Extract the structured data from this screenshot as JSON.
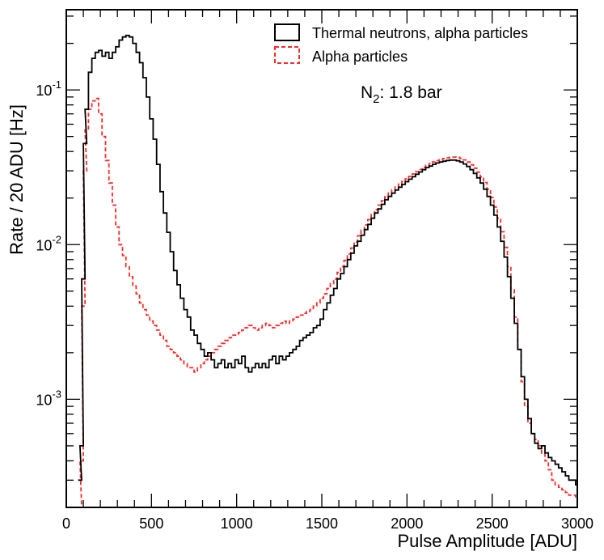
{
  "chart_data": {
    "type": "line",
    "title": "",
    "xlabel": "Pulse Amplitude [ADU]",
    "ylabel": "Rate / 20 ADU [Hz]",
    "xlim": [
      0,
      3000
    ],
    "ylim": [
      0.0002,
      0.33
    ],
    "yscale": "log",
    "grid": false,
    "legend_position": "top-right",
    "x_tick_labels": [
      "0",
      "500",
      "1000",
      "1500",
      "2000",
      "2500",
      "3000"
    ],
    "x_tick_values": [
      0,
      500,
      1000,
      1500,
      2000,
      2500,
      3000
    ],
    "y_tick_values": [
      0.001,
      0.01,
      0.1
    ],
    "y_tick_labels": [
      {
        "base": "10",
        "exp": "-3"
      },
      {
        "base": "10",
        "exp": "-2"
      },
      {
        "base": "10",
        "exp": "-1"
      }
    ],
    "annotation": {
      "main": "N",
      "sub": "2",
      "rest": ": 1.8 bar"
    },
    "bin_width": 20,
    "series": [
      {
        "name": "Thermal neutrons, alpha particles",
        "color": "#000000",
        "style": "solid",
        "points": [
          [
            80,
            0.0003
          ],
          [
            90,
            0.0005
          ],
          [
            100,
            0.006
          ],
          [
            110,
            0.045
          ],
          [
            120,
            0.075
          ],
          [
            140,
            0.13
          ],
          [
            160,
            0.16
          ],
          [
            180,
            0.175
          ],
          [
            200,
            0.18
          ],
          [
            220,
            0.165
          ],
          [
            240,
            0.175
          ],
          [
            260,
            0.16
          ],
          [
            280,
            0.175
          ],
          [
            300,
            0.19
          ],
          [
            320,
            0.21
          ],
          [
            340,
            0.22
          ],
          [
            360,
            0.225
          ],
          [
            380,
            0.22
          ],
          [
            400,
            0.2
          ],
          [
            420,
            0.175
          ],
          [
            440,
            0.15
          ],
          [
            460,
            0.12
          ],
          [
            480,
            0.09
          ],
          [
            500,
            0.065
          ],
          [
            520,
            0.048
          ],
          [
            540,
            0.033
          ],
          [
            560,
            0.022
          ],
          [
            580,
            0.016
          ],
          [
            600,
            0.012
          ],
          [
            620,
            0.009
          ],
          [
            640,
            0.0068
          ],
          [
            660,
            0.0055
          ],
          [
            680,
            0.0045
          ],
          [
            700,
            0.0038
          ],
          [
            720,
            0.0034
          ],
          [
            740,
            0.0028
          ],
          [
            760,
            0.0026
          ],
          [
            780,
            0.0023
          ],
          [
            800,
            0.0021
          ],
          [
            820,
            0.0019
          ],
          [
            840,
            0.002
          ],
          [
            860,
            0.0018
          ],
          [
            880,
            0.0016
          ],
          [
            900,
            0.0017
          ],
          [
            920,
            0.0018
          ],
          [
            940,
            0.0016
          ],
          [
            960,
            0.0017
          ],
          [
            980,
            0.0016
          ],
          [
            1000,
            0.0018
          ],
          [
            1020,
            0.0017
          ],
          [
            1040,
            0.0019
          ],
          [
            1060,
            0.0016
          ],
          [
            1080,
            0.0015
          ],
          [
            1100,
            0.0016
          ],
          [
            1120,
            0.0017
          ],
          [
            1140,
            0.0016
          ],
          [
            1160,
            0.0017
          ],
          [
            1180,
            0.0016
          ],
          [
            1200,
            0.0018
          ],
          [
            1220,
            0.0019
          ],
          [
            1240,
            0.0017
          ],
          [
            1260,
            0.0019
          ],
          [
            1280,
            0.0018
          ],
          [
            1300,
            0.0019
          ],
          [
            1320,
            0.002
          ],
          [
            1340,
            0.0021
          ],
          [
            1360,
            0.0022
          ],
          [
            1380,
            0.0024
          ],
          [
            1400,
            0.0025
          ],
          [
            1420,
            0.0026
          ],
          [
            1440,
            0.0027
          ],
          [
            1460,
            0.0029
          ],
          [
            1480,
            0.003
          ],
          [
            1500,
            0.0033
          ],
          [
            1520,
            0.0038
          ],
          [
            1540,
            0.0042
          ],
          [
            1560,
            0.0047
          ],
          [
            1580,
            0.0052
          ],
          [
            1600,
            0.006
          ],
          [
            1620,
            0.0065
          ],
          [
            1640,
            0.0072
          ],
          [
            1660,
            0.008
          ],
          [
            1680,
            0.0088
          ],
          [
            1700,
            0.0098
          ],
          [
            1720,
            0.0105
          ],
          [
            1740,
            0.0115
          ],
          [
            1760,
            0.0125
          ],
          [
            1780,
            0.0135
          ],
          [
            1800,
            0.0148
          ],
          [
            1820,
            0.016
          ],
          [
            1840,
            0.017
          ],
          [
            1860,
            0.0182
          ],
          [
            1880,
            0.0195
          ],
          [
            1900,
            0.0205
          ],
          [
            1920,
            0.0215
          ],
          [
            1940,
            0.0225
          ],
          [
            1960,
            0.0235
          ],
          [
            1980,
            0.0245
          ],
          [
            2000,
            0.0255
          ],
          [
            2020,
            0.0265
          ],
          [
            2040,
            0.0275
          ],
          [
            2060,
            0.0285
          ],
          [
            2080,
            0.0295
          ],
          [
            2100,
            0.0305
          ],
          [
            2120,
            0.0315
          ],
          [
            2140,
            0.0322
          ],
          [
            2160,
            0.033
          ],
          [
            2180,
            0.0337
          ],
          [
            2200,
            0.0342
          ],
          [
            2220,
            0.0346
          ],
          [
            2240,
            0.035
          ],
          [
            2260,
            0.0352
          ],
          [
            2280,
            0.0352
          ],
          [
            2300,
            0.0348
          ],
          [
            2320,
            0.0342
          ],
          [
            2340,
            0.0332
          ],
          [
            2360,
            0.032
          ],
          [
            2380,
            0.0305
          ],
          [
            2400,
            0.0288
          ],
          [
            2420,
            0.027
          ],
          [
            2440,
            0.025
          ],
          [
            2460,
            0.0228
          ],
          [
            2480,
            0.0205
          ],
          [
            2500,
            0.018
          ],
          [
            2520,
            0.0155
          ],
          [
            2540,
            0.013
          ],
          [
            2560,
            0.0105
          ],
          [
            2580,
            0.0083
          ],
          [
            2600,
            0.0062
          ],
          [
            2620,
            0.0045
          ],
          [
            2640,
            0.0031
          ],
          [
            2660,
            0.0021
          ],
          [
            2680,
            0.0014
          ],
          [
            2700,
            0.001
          ],
          [
            2720,
            0.00075
          ],
          [
            2740,
            0.0006
          ],
          [
            2760,
            0.00052
          ],
          [
            2780,
            0.00048
          ],
          [
            2800,
            0.0005
          ],
          [
            2820,
            0.00045
          ],
          [
            2840,
            0.00042
          ],
          [
            2860,
            0.0004
          ],
          [
            2880,
            0.00038
          ],
          [
            2900,
            0.00036
          ],
          [
            2920,
            0.00034
          ],
          [
            2940,
            0.00032
          ],
          [
            2960,
            0.0003
          ],
          [
            2980,
            0.0003
          ],
          [
            3000,
            0.00028
          ]
        ]
      },
      {
        "name": "Alpha particles",
        "color": "#ff2a2a",
        "style": "dashed",
        "points": [
          [
            80,
            0.0002
          ],
          [
            90,
            0.0004
          ],
          [
            100,
            0.004
          ],
          [
            110,
            0.03
          ],
          [
            120,
            0.055
          ],
          [
            140,
            0.075
          ],
          [
            160,
            0.085
          ],
          [
            180,
            0.088
          ],
          [
            200,
            0.07
          ],
          [
            220,
            0.05
          ],
          [
            240,
            0.035
          ],
          [
            260,
            0.025
          ],
          [
            280,
            0.018
          ],
          [
            300,
            0.013
          ],
          [
            320,
            0.01
          ],
          [
            340,
            0.0085
          ],
          [
            360,
            0.0072
          ],
          [
            380,
            0.0062
          ],
          [
            400,
            0.0054
          ],
          [
            420,
            0.0048
          ],
          [
            440,
            0.0042
          ],
          [
            460,
            0.0038
          ],
          [
            480,
            0.0035
          ],
          [
            500,
            0.0032
          ],
          [
            520,
            0.003
          ],
          [
            540,
            0.0028
          ],
          [
            560,
            0.0026
          ],
          [
            580,
            0.0024
          ],
          [
            600,
            0.0022
          ],
          [
            620,
            0.0021
          ],
          [
            640,
            0.002
          ],
          [
            660,
            0.0019
          ],
          [
            680,
            0.0018
          ],
          [
            700,
            0.0017
          ],
          [
            720,
            0.0016
          ],
          [
            740,
            0.0016
          ],
          [
            760,
            0.0015
          ],
          [
            780,
            0.0016
          ],
          [
            800,
            0.0017
          ],
          [
            820,
            0.0018
          ],
          [
            840,
            0.0019
          ],
          [
            860,
            0.002
          ],
          [
            880,
            0.0021
          ],
          [
            900,
            0.0022
          ],
          [
            920,
            0.0023
          ],
          [
            940,
            0.0024
          ],
          [
            960,
            0.0025
          ],
          [
            980,
            0.0026
          ],
          [
            1000,
            0.0026
          ],
          [
            1020,
            0.0027
          ],
          [
            1040,
            0.0028
          ],
          [
            1060,
            0.0029
          ],
          [
            1080,
            0.003
          ],
          [
            1100,
            0.0029
          ],
          [
            1120,
            0.0028
          ],
          [
            1140,
            0.0029
          ],
          [
            1160,
            0.003
          ],
          [
            1180,
            0.0031
          ],
          [
            1200,
            0.003
          ],
          [
            1220,
            0.0029
          ],
          [
            1240,
            0.003
          ],
          [
            1260,
            0.0031
          ],
          [
            1280,
            0.0032
          ],
          [
            1300,
            0.0031
          ],
          [
            1320,
            0.0032
          ],
          [
            1340,
            0.0033
          ],
          [
            1360,
            0.0034
          ],
          [
            1380,
            0.0035
          ],
          [
            1400,
            0.0036
          ],
          [
            1420,
            0.0037
          ],
          [
            1440,
            0.0038
          ],
          [
            1460,
            0.004
          ],
          [
            1480,
            0.0042
          ],
          [
            1500,
            0.0045
          ],
          [
            1520,
            0.0048
          ],
          [
            1540,
            0.0052
          ],
          [
            1560,
            0.0056
          ],
          [
            1580,
            0.006
          ],
          [
            1600,
            0.0066
          ],
          [
            1620,
            0.0072
          ],
          [
            1640,
            0.0079
          ],
          [
            1660,
            0.0087
          ],
          [
            1680,
            0.0095
          ],
          [
            1700,
            0.0104
          ],
          [
            1720,
            0.0114
          ],
          [
            1740,
            0.0124
          ],
          [
            1760,
            0.0134
          ],
          [
            1780,
            0.0145
          ],
          [
            1800,
            0.0157
          ],
          [
            1820,
            0.0168
          ],
          [
            1840,
            0.018
          ],
          [
            1860,
            0.0192
          ],
          [
            1880,
            0.0204
          ],
          [
            1900,
            0.0215
          ],
          [
            1920,
            0.0226
          ],
          [
            1940,
            0.0236
          ],
          [
            1960,
            0.0246
          ],
          [
            1980,
            0.0256
          ],
          [
            2000,
            0.0266
          ],
          [
            2020,
            0.0276
          ],
          [
            2040,
            0.0286
          ],
          [
            2060,
            0.0296
          ],
          [
            2080,
            0.0306
          ],
          [
            2100,
            0.0316
          ],
          [
            2120,
            0.0326
          ],
          [
            2140,
            0.0334
          ],
          [
            2160,
            0.0342
          ],
          [
            2180,
            0.0349
          ],
          [
            2200,
            0.0355
          ],
          [
            2220,
            0.036
          ],
          [
            2240,
            0.0364
          ],
          [
            2260,
            0.0367
          ],
          [
            2280,
            0.0368
          ],
          [
            2300,
            0.0366
          ],
          [
            2320,
            0.0361
          ],
          [
            2340,
            0.0353
          ],
          [
            2360,
            0.0342
          ],
          [
            2380,
            0.0328
          ],
          [
            2400,
            0.0312
          ],
          [
            2420,
            0.0294
          ],
          [
            2440,
            0.0274
          ],
          [
            2460,
            0.0252
          ],
          [
            2480,
            0.0228
          ],
          [
            2500,
            0.0202
          ],
          [
            2520,
            0.0175
          ],
          [
            2540,
            0.0148
          ],
          [
            2560,
            0.0121
          ],
          [
            2580,
            0.0096
          ],
          [
            2600,
            0.0072
          ],
          [
            2620,
            0.0051
          ],
          [
            2640,
            0.0034
          ],
          [
            2660,
            0.0021
          ],
          [
            2680,
            0.0013
          ],
          [
            2700,
            0.0009
          ],
          [
            2720,
            0.0007
          ],
          [
            2740,
            0.0006
          ],
          [
            2760,
            0.00055
          ],
          [
            2780,
            0.0005
          ],
          [
            2800,
            0.00045
          ],
          [
            2820,
            0.0004
          ],
          [
            2840,
            0.00035
          ],
          [
            2860,
            0.0003
          ],
          [
            2880,
            0.00028
          ],
          [
            2900,
            0.00027
          ],
          [
            2920,
            0.00026
          ],
          [
            2940,
            0.00025
          ],
          [
            2960,
            0.00024
          ],
          [
            2980,
            0.00024
          ],
          [
            3000,
            0.00023
          ]
        ]
      }
    ]
  }
}
